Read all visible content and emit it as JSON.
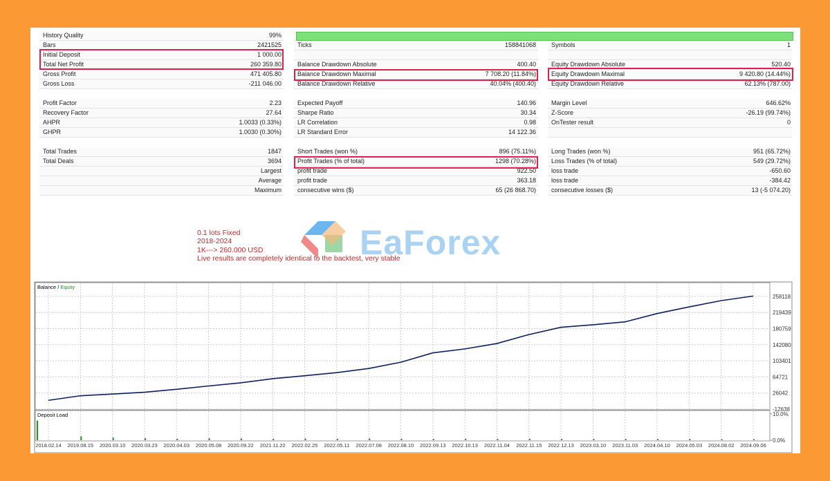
{
  "report": {
    "sections": [
      {
        "rows": [
          [
            "History Quality",
            "99%",
            null,
            null,
            null,
            null
          ],
          [
            "Bars",
            "2421525",
            "Ticks",
            "158841068",
            "Symbols",
            "1"
          ],
          [
            "Initial Deposit",
            "1 000.00",
            null,
            null,
            null,
            null
          ],
          [
            "Total Net Profit",
            "260 359.80",
            "Balance Drawdown Absolute",
            "400.40",
            "Equity Drawdown Absolute",
            "520.40"
          ],
          [
            "Gross Profit",
            "471 405.80",
            "Balance Drawdown Maximal",
            "7 708.20 (11.84%)",
            "Equity Drawdown Maximal",
            "9 420.80 (14.44%)"
          ],
          [
            "Gross Loss",
            "-211 046.00",
            "Balance Drawdown Relative",
            "40.04% (400.40)",
            "Equity Drawdown Relative",
            "62.13% (787.00)"
          ]
        ]
      },
      {
        "rows": [
          [
            "Profit Factor",
            "2.23",
            "Expected Payoff",
            "140.96",
            "Margin Level",
            "646.62%"
          ],
          [
            "Recovery Factor",
            "27.64",
            "Sharpe Ratio",
            "30.34",
            "Z-Score",
            "-26.19 (99.74%)"
          ],
          [
            "AHPR",
            "1.0033 (0.33%)",
            "LR Correlation",
            "0.98",
            "OnTester result",
            "0"
          ],
          [
            "GHPR",
            "1.0030 (0.30%)",
            "LR Standard Error",
            "14 122.36",
            null,
            null
          ]
        ]
      },
      {
        "rows": [
          [
            "Total Trades",
            "1847",
            "Short Trades (won %)",
            "896 (75.11%)",
            "Long Trades (won %)",
            "951 (65.72%)"
          ],
          [
            "Total Deals",
            "3694",
            "Profit Trades (% of total)",
            "1298 (70.28%)",
            "Loss Trades (% of total)",
            "549 (29.72%)"
          ],
          [
            null,
            "Largest",
            "profit trade",
            "922.50",
            "loss trade",
            "-650.60"
          ],
          [
            null,
            "Average",
            "profit trade",
            "363.18",
            "loss trade",
            "-384.42"
          ],
          [
            null,
            "Maximum",
            "consecutive wins ($)",
            "65 (26 868.70)",
            "consecutive losses ($)",
            "13 (-5 074.20)"
          ]
        ]
      }
    ]
  },
  "notes": [
    "0.1 lots Fixed",
    "2018-2024",
    "1K---> 260.000 USD",
    "Live results are completely identical to the backtest, very stable"
  ],
  "watermark": "EaForex",
  "chart_data": {
    "type": "line",
    "legend": [
      "Balance",
      "Equity"
    ],
    "legend_colors": [
      "#000000",
      "#1a9a1a"
    ],
    "categories": [
      "2018.02.14",
      "2019.08.15",
      "2020.03.10",
      "2020.03.23",
      "2020.04.03",
      "2020.05.08",
      "2020.09.22",
      "2021.11.22",
      "2022.02.25",
      "2022.05.11",
      "2022.07.08",
      "2022.08.10",
      "2022.09.13",
      "2022.10.13",
      "2022.11.04",
      "2022.11.15",
      "2022.12.13",
      "2023.03.10",
      "2023.11.03",
      "2024.04.10",
      "2024.05.03",
      "2024.08.02",
      "2024.09.06"
    ],
    "series": [
      {
        "name": "Balance",
        "color": "#0b1f5c",
        "values": [
          8500,
          19500,
          23500,
          28000,
          35000,
          43000,
          50500,
          60500,
          67500,
          75000,
          85000,
          100000,
          122500,
          132000,
          145000,
          166500,
          184000,
          190000,
          197000,
          217000,
          233000,
          248000,
          259000
        ]
      }
    ],
    "ylim": [
      -12638,
      289500
    ],
    "yticks": [
      258118,
      219439,
      180759,
      142080,
      103401,
      64721,
      26042,
      -12638
    ],
    "grid": true,
    "subchart": {
      "title": "Deposit Load",
      "color": "#1a9a1a",
      "values": [
        7.5,
        1.5,
        1,
        0.8,
        0.6,
        0.8,
        0.7,
        0.6,
        0.7,
        0.6,
        0.7,
        0.6,
        0.5,
        0.6,
        0.5,
        0.6,
        0.5,
        0.5,
        0.5,
        0.5,
        0.5,
        0.4,
        0.4
      ],
      "ylim": [
        0,
        10
      ],
      "yticks": [
        {
          "value": 10,
          "label": "10.0%"
        },
        {
          "value": 0,
          "label": "0.0%"
        }
      ]
    }
  }
}
